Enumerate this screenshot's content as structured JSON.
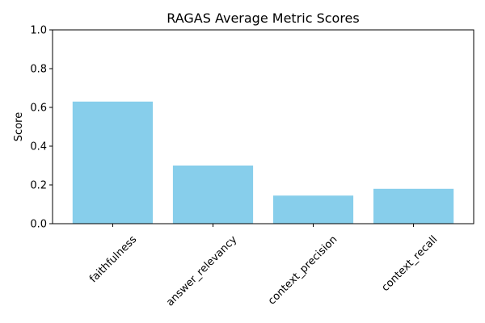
{
  "chart_data": {
    "type": "bar",
    "title": "RAGAS Average Metric Scores",
    "xlabel": "",
    "ylabel": "Score",
    "categories": [
      "faithfulness",
      "answer_relevancy",
      "context_precision",
      "context_recall"
    ],
    "values": [
      0.63,
      0.3,
      0.145,
      0.18
    ],
    "ylim": [
      0,
      1.0
    ],
    "yticks": [
      "0.0",
      "0.2",
      "0.4",
      "0.6",
      "0.8",
      "1.0"
    ],
    "bar_color": "#87ceeb",
    "grid": false,
    "legend": "none"
  }
}
